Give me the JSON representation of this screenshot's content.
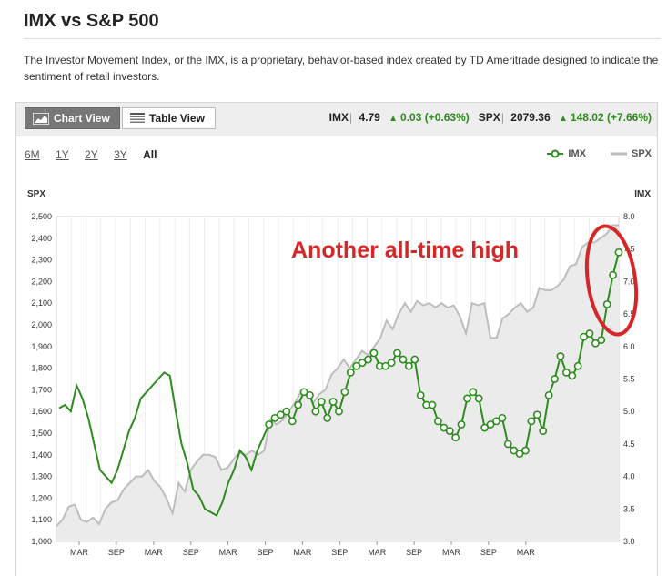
{
  "page": {
    "title": "IMX vs S&P 500",
    "description": "The Investor Movement Index, or the IMX, is a proprietary, behavior-based index created by TD Ameritrade designed to indicate the sentiment of retail investors."
  },
  "toolbar": {
    "chart_view_label": "Chart View",
    "table_view_label": "Table View"
  },
  "quote": {
    "imx_symbol": "IMX",
    "imx_value": "4.79",
    "imx_change": "0.03",
    "imx_pct": "(+0.63%)",
    "spx_symbol": "SPX",
    "spx_value": "2079.36",
    "spx_change": "148.02",
    "spx_pct": "(+7.66%)",
    "separator": "|"
  },
  "ranges": [
    "6M",
    "1Y",
    "2Y",
    "3Y",
    "All"
  ],
  "active_range": "All",
  "colors": {
    "imx": "#2e8b1f",
    "spx": "#bdbdbd",
    "spx_fill": "#ebebeb",
    "annotation": "#d62728",
    "up": "#2e8b1f"
  },
  "annotation": {
    "text": "Another all-time high"
  },
  "chart_data": {
    "type": "line",
    "legend": [
      "IMX",
      "SPX"
    ],
    "legend_position": "top-right",
    "grid": true,
    "left_axis": {
      "label": "SPX",
      "range": [
        1000,
        2500
      ],
      "ticks": [
        "1,000",
        "1,100",
        "1,200",
        "1,300",
        "1,400",
        "1,500",
        "1,600",
        "1,700",
        "1,800",
        "1,900",
        "2,000",
        "2,100",
        "2,200",
        "2,300",
        "2,400",
        "2,500"
      ]
    },
    "right_axis": {
      "label": "IMX",
      "range": [
        3.0,
        8.0
      ],
      "ticks": [
        "3.0",
        "3.5",
        "4.0",
        "4.5",
        "5.0",
        "5.5",
        "6.0",
        "6.5",
        "7.0",
        "7.5",
        "8.0"
      ]
    },
    "x_ticks": [
      "MAR",
      "SEP",
      "MAR",
      "SEP",
      "MAR",
      "SEP",
      "MAR",
      "SEP",
      "MAR",
      "SEP",
      "MAR",
      "SEP",
      "MAR"
    ],
    "series": [
      {
        "name": "SPX",
        "values": [
          1070,
          1100,
          1160,
          1170,
          1100,
          1090,
          1110,
          1080,
          1150,
          1180,
          1190,
          1240,
          1270,
          1300,
          1300,
          1330,
          1280,
          1250,
          1200,
          1130,
          1270,
          1230,
          1330,
          1370,
          1400,
          1400,
          1390,
          1330,
          1340,
          1380,
          1410,
          1400,
          1420,
          1400,
          1420,
          1560,
          1540,
          1560,
          1600,
          1640,
          1690,
          1680,
          1640,
          1680,
          1700,
          1770,
          1800,
          1840,
          1800,
          1840,
          1880,
          1860,
          1900,
          1940,
          2020,
          1980,
          2050,
          2100,
          2060,
          2110,
          2090,
          2100,
          2080,
          2100,
          2080,
          2090,
          2040,
          1960,
          2100,
          2090,
          2100,
          1940,
          1940,
          2030,
          2050,
          2080,
          2100,
          2060,
          2080,
          2170,
          2160,
          2160,
          2180,
          2210,
          2270,
          2280,
          2360,
          2380,
          2380,
          2400,
          2420,
          2460,
          2460
        ]
      },
      {
        "name": "IMX",
        "values": [
          5.05,
          5.1,
          5.0,
          5.4,
          5.2,
          4.9,
          4.5,
          4.1,
          4.0,
          3.9,
          4.1,
          4.4,
          4.7,
          4.9,
          5.2,
          5.3,
          5.4,
          5.5,
          5.6,
          5.55,
          5.0,
          4.5,
          4.2,
          3.8,
          3.7,
          3.5,
          3.45,
          3.4,
          3.6,
          3.9,
          4.1,
          4.4,
          4.3,
          4.1,
          4.4,
          4.6,
          4.8,
          4.9,
          4.95,
          5.0,
          4.85,
          5.1,
          5.3,
          5.25,
          5.0,
          5.15,
          4.9,
          5.15,
          5.0,
          5.3,
          5.6,
          5.7,
          5.75,
          5.8,
          5.9,
          5.7,
          5.7,
          5.75,
          5.9,
          5.8,
          5.7,
          5.8,
          5.25,
          5.1,
          5.1,
          4.85,
          4.75,
          4.7,
          4.6,
          4.8,
          5.2,
          5.3,
          5.2,
          4.75,
          4.8,
          4.85,
          4.9,
          4.5,
          4.4,
          4.35,
          4.4,
          4.85,
          4.95,
          4.7,
          5.25,
          5.5,
          5.85,
          5.6,
          5.55,
          5.7,
          6.15,
          6.2,
          6.05,
          6.1,
          6.65,
          7.1,
          7.45
        ]
      }
    ],
    "imx_markers_from": 36
  }
}
